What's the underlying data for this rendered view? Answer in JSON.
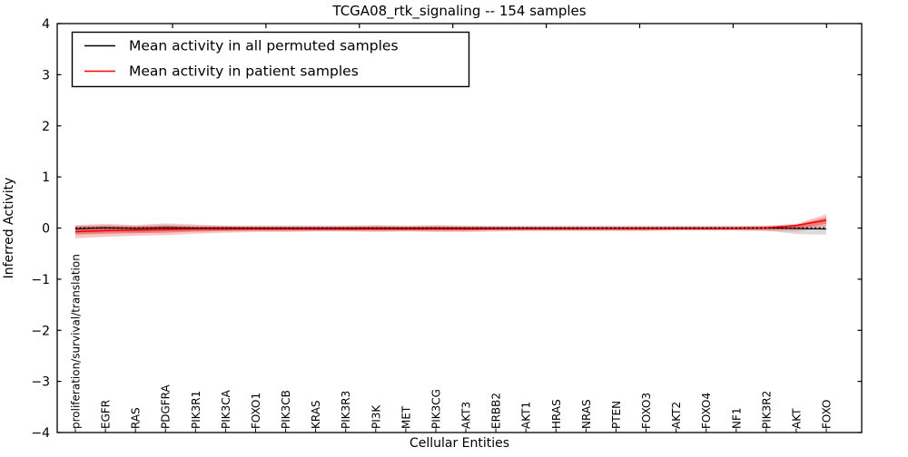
{
  "title": "TCGA08_rtk_signaling -- 154 samples",
  "colors": {
    "permuted_line": "#000000",
    "patient_line": "#ff0000",
    "patient_band_outer": "#f08080",
    "patient_band_inner": "#e04040",
    "permuted_band": "#b0b0b0",
    "frame": "#000000",
    "background": "#ffffff"
  },
  "chart_data": {
    "type": "line",
    "title": "TCGA08_rtk_signaling -- 154 samples",
    "xlabel": "Cellular Entities",
    "ylabel": "Inferred Activity",
    "ylim": [
      -4,
      4
    ],
    "yticks": [
      4,
      3,
      2,
      1,
      0,
      -1,
      -2,
      -3,
      -4
    ],
    "grid": false,
    "legend_position": "upper left",
    "zero_reference_line": 0,
    "categories": [
      "proliferation/survival/translation",
      "EGFR",
      "RAS",
      "PDGFRA",
      "PIK3R1",
      "PIK3CA",
      "FOXO1",
      "PIK3CB",
      "KRAS",
      "PIK3R3",
      "PI3K",
      "MET",
      "PIK3CG",
      "AKT3",
      "ERBB2",
      "AKT1",
      "HRAS",
      "NRAS",
      "PTEN",
      "FOXO3",
      "AKT2",
      "FOXO4",
      "NF1",
      "PIK3R2",
      "AKT",
      "FOXO"
    ],
    "legend": [
      {
        "label": "Mean activity in all permuted samples",
        "color": "#000000"
      },
      {
        "label": "Mean activity in patient samples",
        "color": "#ff0000"
      }
    ],
    "series": [
      {
        "name": "Mean activity in all permuted samples",
        "values": [
          -0.02,
          0.005,
          -0.01,
          0.005,
          0.0,
          0.0,
          0.0,
          0.0,
          0.0,
          0.0,
          0.0,
          0.0,
          0.0,
          0.0,
          0.0,
          0.0,
          0.0,
          0.0,
          0.0,
          0.0,
          0.0,
          0.0,
          0.0,
          0.0,
          -0.01,
          -0.02
        ]
      },
      {
        "name": "Mean activity in patient samples",
        "values": [
          -0.07,
          -0.05,
          -0.04,
          -0.03,
          -0.02,
          -0.02,
          -0.02,
          -0.02,
          -0.02,
          -0.02,
          -0.02,
          -0.02,
          -0.02,
          -0.02,
          -0.015,
          -0.015,
          -0.015,
          -0.01,
          -0.01,
          -0.01,
          -0.01,
          -0.01,
          -0.005,
          0.0,
          0.05,
          0.15
        ]
      }
    ],
    "bands": [
      {
        "name": "permuted-std-band",
        "hi": [
          0.04,
          0.06,
          0.04,
          0.06,
          0.05,
          0.04,
          0.04,
          0.04,
          0.04,
          0.04,
          0.04,
          0.04,
          0.04,
          0.04,
          0.04,
          0.04,
          0.04,
          0.04,
          0.04,
          0.04,
          0.04,
          0.04,
          0.04,
          0.04,
          0.05,
          0.06
        ],
        "lo": [
          -0.1,
          -0.08,
          -0.08,
          -0.06,
          -0.06,
          -0.05,
          -0.05,
          -0.05,
          -0.05,
          -0.05,
          -0.05,
          -0.05,
          -0.05,
          -0.05,
          -0.05,
          -0.04,
          -0.04,
          -0.04,
          -0.04,
          -0.04,
          -0.04,
          -0.04,
          -0.04,
          -0.05,
          -0.12,
          -0.13
        ]
      },
      {
        "name": "patient-std-band-outer",
        "hi": [
          0.06,
          0.08,
          0.06,
          0.09,
          0.07,
          0.05,
          0.05,
          0.05,
          0.05,
          0.05,
          0.06,
          0.05,
          0.06,
          0.05,
          0.04,
          0.04,
          0.04,
          0.04,
          0.04,
          0.04,
          0.04,
          0.04,
          0.04,
          0.05,
          0.08,
          0.27
        ],
        "lo": [
          -0.2,
          -0.17,
          -0.15,
          -0.14,
          -0.11,
          -0.09,
          -0.08,
          -0.08,
          -0.07,
          -0.07,
          -0.08,
          -0.07,
          -0.08,
          -0.08,
          -0.07,
          -0.06,
          -0.06,
          -0.06,
          -0.06,
          -0.06,
          -0.05,
          -0.05,
          -0.05,
          -0.06,
          -0.07,
          0.02
        ]
      },
      {
        "name": "patient-std-band-inner",
        "hi": [
          0.03,
          0.04,
          0.03,
          0.05,
          0.03,
          0.03,
          0.02,
          0.02,
          0.02,
          0.02,
          0.03,
          0.02,
          0.03,
          0.02,
          0.02,
          0.02,
          0.02,
          0.02,
          0.02,
          0.02,
          0.02,
          0.02,
          0.02,
          0.03,
          0.06,
          0.21
        ],
        "lo": [
          -0.13,
          -0.11,
          -0.1,
          -0.09,
          -0.07,
          -0.06,
          -0.05,
          -0.05,
          -0.05,
          -0.05,
          -0.05,
          -0.05,
          -0.05,
          -0.05,
          -0.04,
          -0.04,
          -0.04,
          -0.04,
          -0.04,
          -0.04,
          -0.03,
          -0.03,
          -0.03,
          -0.03,
          -0.02,
          0.08
        ]
      }
    ]
  }
}
